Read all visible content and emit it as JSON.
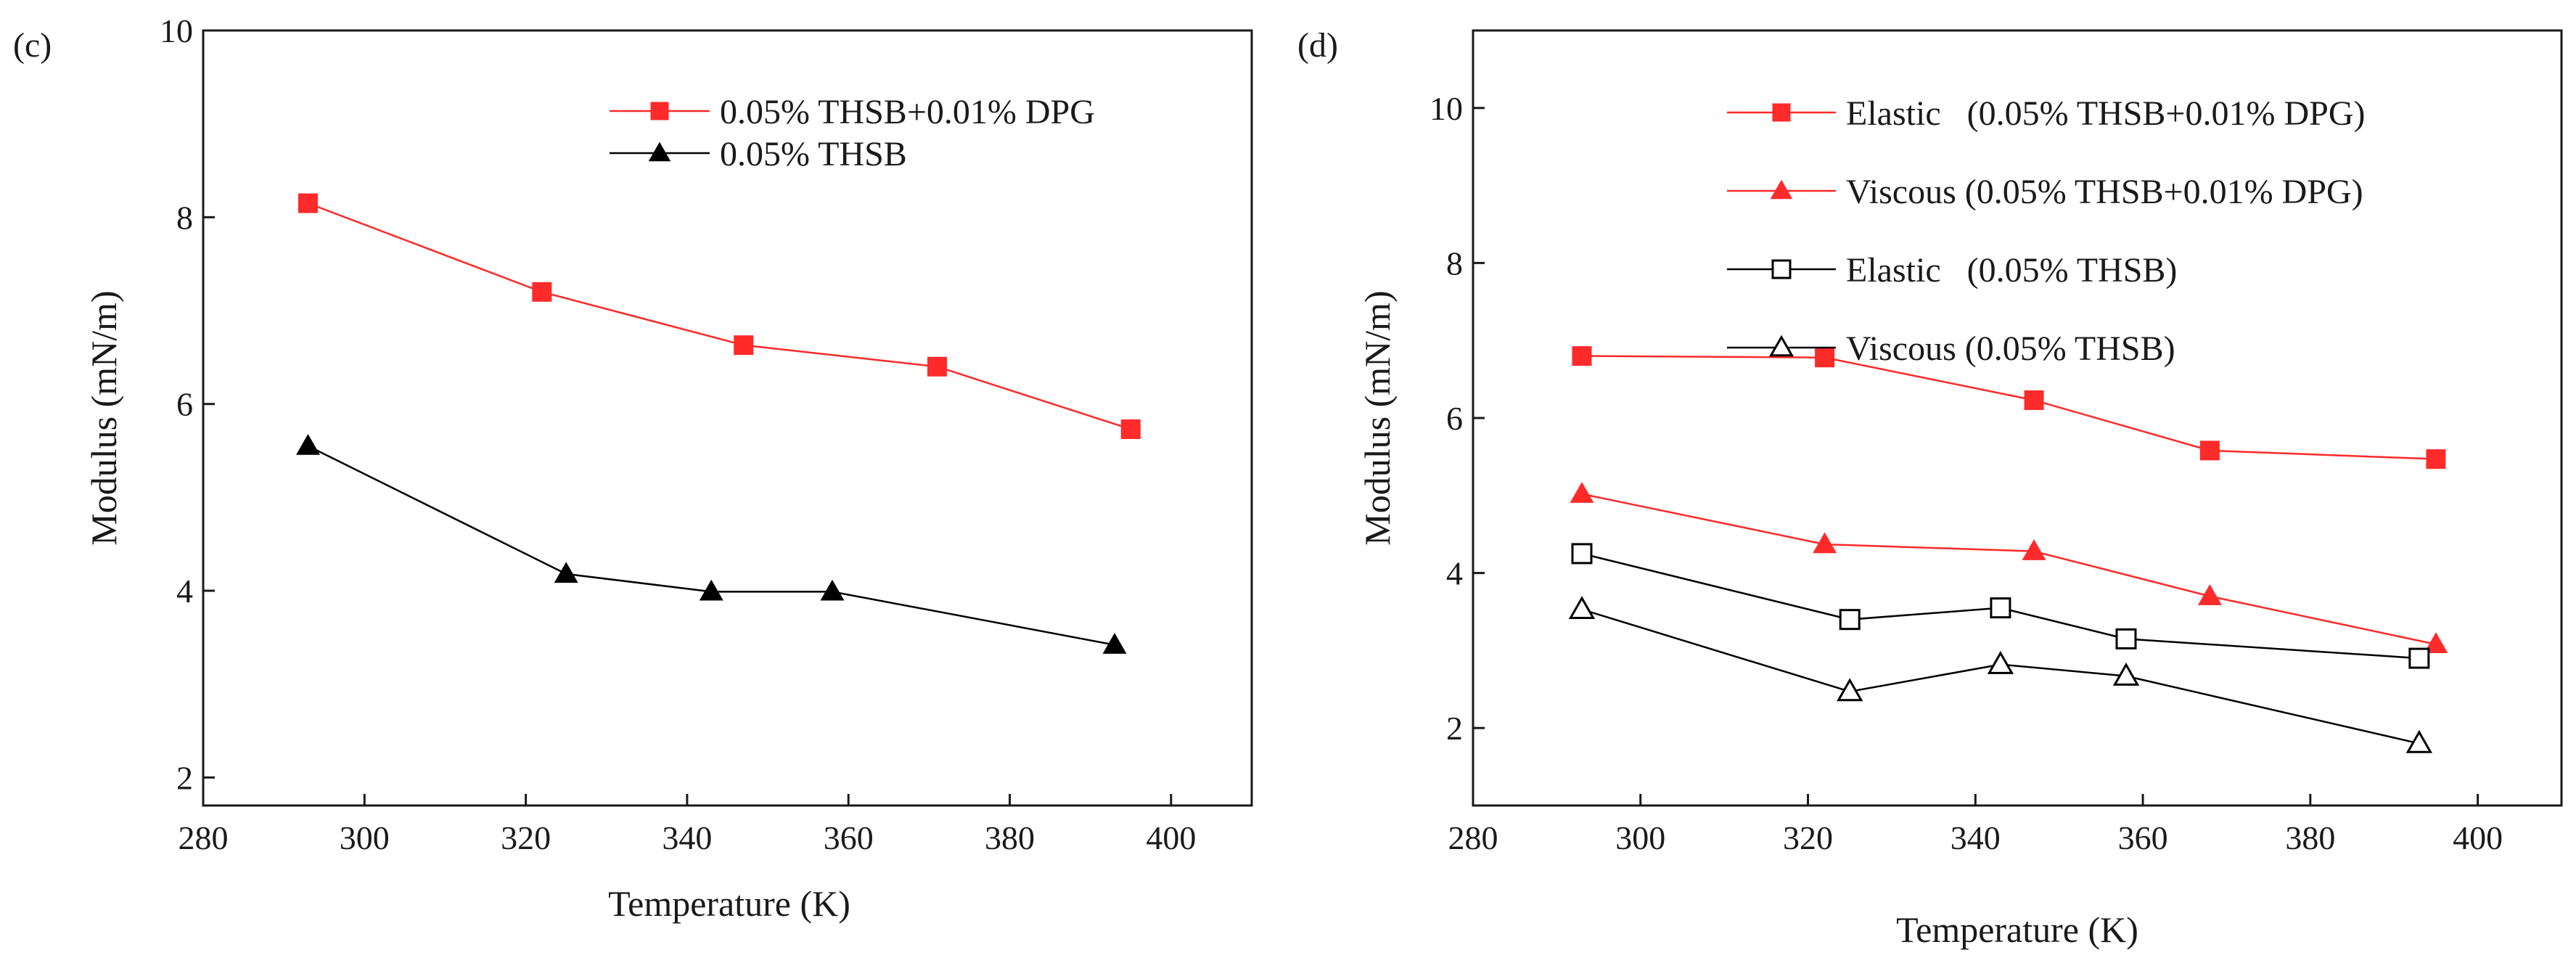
{
  "chart_data": [
    {
      "type": "line",
      "panel_label": "(c)",
      "title": "",
      "xlabel": "Temperature (K)",
      "ylabel": "Modulus (mN/m)",
      "xlim": [
        280,
        410
      ],
      "ylim": [
        1.7,
        10
      ],
      "xticks": [
        280,
        300,
        320,
        340,
        360,
        380,
        400
      ],
      "yticks": [
        2,
        4,
        6,
        8,
        10
      ],
      "legend_position": "top-right",
      "series": [
        {
          "name": "0.05% THSB+0.01% DPG",
          "color": "#ff2a2a",
          "marker": "square-filled",
          "x": [
            293,
            322,
            347,
            371,
            395
          ],
          "y": [
            8.15,
            7.2,
            6.63,
            6.4,
            5.73
          ]
        },
        {
          "name": "0.05% THSB",
          "color": "#000000",
          "marker": "triangle-filled",
          "x": [
            293,
            325,
            343,
            358,
            393
          ],
          "y": [
            5.55,
            4.18,
            3.99,
            3.99,
            3.42
          ]
        }
      ]
    },
    {
      "type": "line",
      "panel_label": "(d)",
      "title": "",
      "xlabel": "Temperature (K)",
      "ylabel": "Modulus (mN/m)",
      "xlim": [
        280,
        410
      ],
      "ylim": [
        1.0,
        11.0
      ],
      "xticks": [
        280,
        300,
        320,
        340,
        360,
        380,
        400
      ],
      "yticks": [
        2,
        4,
        6,
        8,
        10
      ],
      "legend_position": "top-right",
      "series": [
        {
          "name": "Elastic   (0.05% THSB+0.01% DPG)",
          "color": "#ff2a2a",
          "marker": "square-filled",
          "x": [
            293,
            322,
            347,
            368,
            395
          ],
          "y": [
            6.8,
            6.78,
            6.23,
            5.58,
            5.47
          ]
        },
        {
          "name": "Viscous (0.05% THSB+0.01% DPG)",
          "color": "#ff2a2a",
          "marker": "triangle-filled",
          "x": [
            293,
            322,
            347,
            368,
            395
          ],
          "y": [
            5.02,
            4.37,
            4.28,
            3.7,
            3.08
          ]
        },
        {
          "name": "Elastic   (0.05% THSB)",
          "color": "#000000",
          "marker": "square-open",
          "x": [
            293,
            325,
            343,
            358,
            393
          ],
          "y": [
            4.25,
            3.4,
            3.55,
            3.15,
            2.9
          ]
        },
        {
          "name": "Viscous (0.05% THSB)",
          "color": "#000000",
          "marker": "triangle-open",
          "x": [
            293,
            325,
            343,
            358,
            393
          ],
          "y": [
            3.53,
            2.47,
            2.82,
            2.67,
            1.8
          ]
        }
      ]
    }
  ]
}
